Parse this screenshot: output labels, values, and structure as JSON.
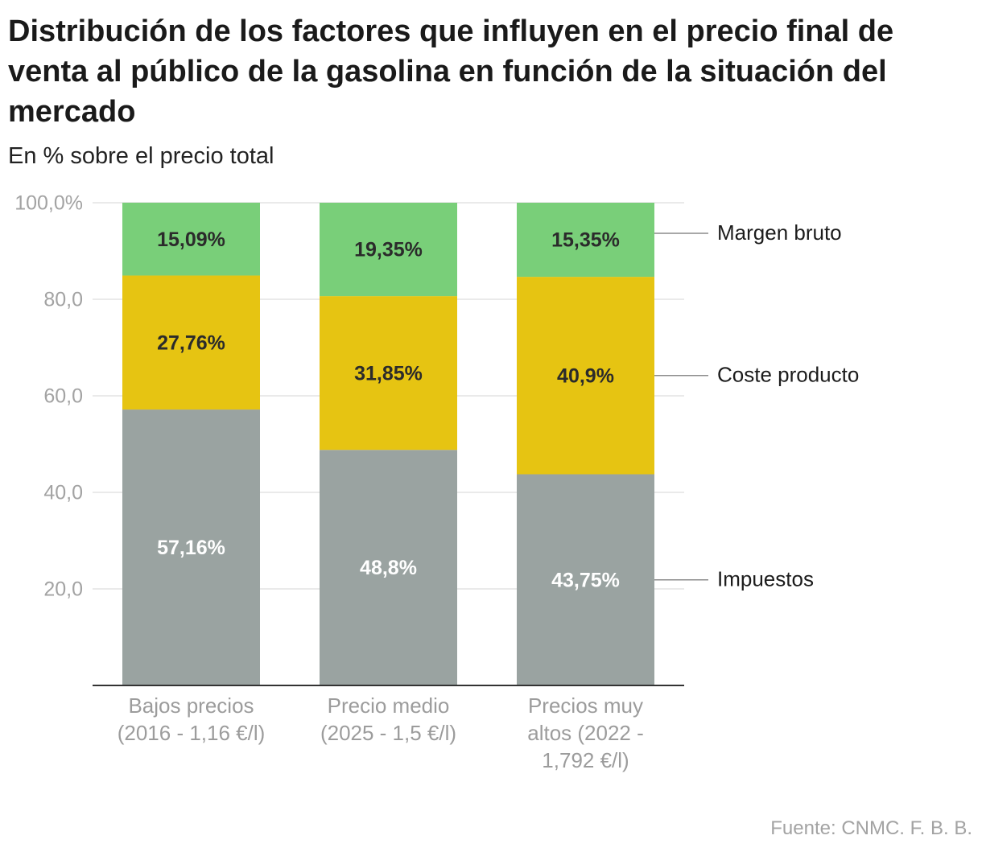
{
  "header": {
    "title": "Distribución de los factores que influyen en el precio final de venta al público de la gasolina en función de la situación del mercado",
    "subtitle": "En % sobre el precio total"
  },
  "source": "Fuente: CNMC. F. B. B.",
  "chart_data": {
    "type": "bar",
    "stacked": true,
    "categories": [
      [
        "Bajos precios",
        "(2016 - 1,16 €/l)"
      ],
      [
        "Precio medio",
        "(2025 - 1,5 €/l)"
      ],
      [
        "Precios muy",
        "altos (2022 -",
        "1,792 €/l)"
      ]
    ],
    "series": [
      {
        "name": "Impuestos",
        "values": [
          57.16,
          48.8,
          43.75
        ],
        "labels": [
          "57,16%",
          "48,8%",
          "43,75%"
        ],
        "color": "#9aa3a1",
        "label_color": "#ffffff"
      },
      {
        "name": "Coste producto",
        "values": [
          27.76,
          31.85,
          40.9
        ],
        "labels": [
          "27,76%",
          "31,85%",
          "40,9%"
        ],
        "color": "#e6c412",
        "label_color": "#2b2b2b"
      },
      {
        "name": "Margen bruto",
        "values": [
          15.09,
          19.35,
          15.35
        ],
        "labels": [
          "15,09%",
          "19,35%",
          "15,35%"
        ],
        "color": "#79cf79",
        "label_color": "#2b2b2b"
      }
    ],
    "y_ticks": [
      {
        "value": 20,
        "label": "20,0"
      },
      {
        "value": 40,
        "label": "40,0"
      },
      {
        "value": 60,
        "label": "60,0"
      },
      {
        "value": 80,
        "label": "80,0"
      },
      {
        "value": 100,
        "label": "100,0%"
      }
    ],
    "ylim": [
      0,
      100
    ],
    "grid": true,
    "legend": "right, inline labels with leader lines"
  }
}
